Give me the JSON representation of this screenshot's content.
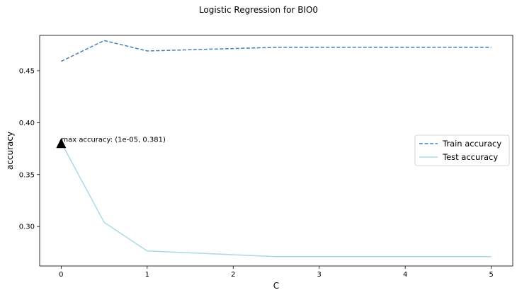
{
  "chart_data": {
    "type": "line",
    "title": "Logistic Regression for BIO0",
    "xlabel": "C",
    "ylabel": "accuracy",
    "xlim": [
      -0.25,
      5.25
    ],
    "ylim": [
      0.262,
      0.484
    ],
    "xticks": [
      0,
      1,
      2,
      3,
      4,
      5
    ],
    "xtick_labels": [
      "0",
      "1",
      "2",
      "3",
      "4",
      "5"
    ],
    "yticks": [
      0.3,
      0.35,
      0.4,
      0.45
    ],
    "ytick_labels": [
      "0.30",
      "0.35",
      "0.40",
      "0.45"
    ],
    "grid": false,
    "legend_position": "center-right",
    "series": [
      {
        "name": "Train accuracy",
        "style": "dashed",
        "color": "#4682b4",
        "x": [
          1e-05,
          0.5,
          1,
          2.5,
          5
        ],
        "y": [
          0.459,
          0.479,
          0.469,
          0.4725,
          0.4725
        ]
      },
      {
        "name": "Test accuracy",
        "style": "solid",
        "color": "#add8e6",
        "x": [
          1e-05,
          0.5,
          1,
          2.5,
          5
        ],
        "y": [
          0.381,
          0.304,
          0.2765,
          0.271,
          0.271
        ]
      }
    ],
    "annotation": {
      "text": "max accuracy: (1e-05, 0.381)",
      "x": 1e-05,
      "y": 0.381,
      "marker": "triangle",
      "marker_color": "#000000"
    }
  }
}
